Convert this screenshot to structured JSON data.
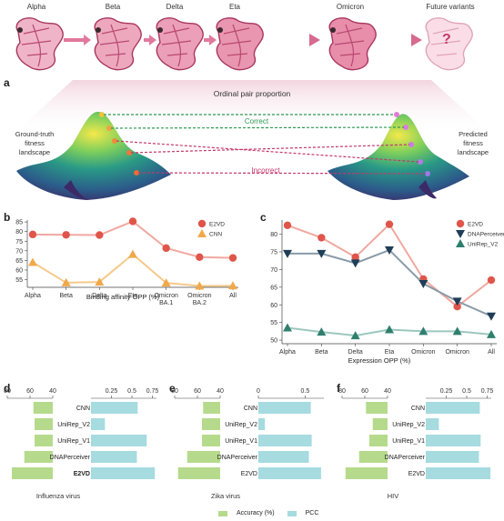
{
  "top_variants": [
    "Alpha",
    "Beta",
    "Delta",
    "Eta",
    "Omicron",
    "Future variants"
  ],
  "future_mark": "?",
  "panel_a": {
    "letter": "a",
    "ordinal_title": "Ordinal pair proportion",
    "left_label": [
      "Ground-truth",
      "fitness",
      "landscape"
    ],
    "right_label": [
      "Predicted",
      "fitness",
      "landscape"
    ],
    "correct": "Correct",
    "incorrect": "Incorrect",
    "colors": {
      "correct": "#2e9b55",
      "incorrect": "#c4386a"
    }
  },
  "panel_b": {
    "letter": "b",
    "xlabel": "Binding affinity OPP (%)",
    "legend": [
      "E2VD",
      "CNN"
    ]
  },
  "panel_c": {
    "letter": "c",
    "xlabel": "Expression OPP (%)",
    "legend": [
      "E2VD",
      "DNAPerceiver",
      "UniRep_V2"
    ]
  },
  "panel_d": {
    "letter": "d",
    "title": "Influenza virus"
  },
  "panel_e": {
    "letter": "e",
    "title": "Zika virus"
  },
  "panel_f": {
    "letter": "f",
    "title": "HIV"
  },
  "bottom_legend": {
    "accuracy": "Accuracy (%)",
    "pcc": "PCC"
  },
  "chart_data": [
    {
      "type": "line",
      "id": "b",
      "categories": [
        "Alpha",
        "Beta",
        "Delta",
        "Eta",
        "Omicron BA.1",
        "Omicron BA.2",
        "All"
      ],
      "xlabel": "Binding affinity OPP (%)",
      "ylim": [
        51,
        86
      ],
      "yticks": [
        55,
        60,
        65,
        70,
        75,
        80,
        85
      ],
      "legend_position": "top-right",
      "series": [
        {
          "name": "E2VD",
          "color": "#e0554a",
          "line": "#f0a8a0",
          "marker": "circle",
          "values": [
            78.5,
            78.3,
            78.2,
            85.3,
            71.4,
            66.7,
            66.3
          ]
        },
        {
          "name": "CNN",
          "color": "#f0a94a",
          "line": "#f5c98a",
          "marker": "triangle",
          "values": [
            64.0,
            53.4,
            53.8,
            68.2,
            53.3,
            51.7,
            51.8
          ]
        }
      ]
    },
    {
      "type": "line",
      "id": "c",
      "categories": [
        "Alpha",
        "Beta",
        "Delta",
        "Eta",
        "Omicron BA.1",
        "Omicron BA.2",
        "All"
      ],
      "xlabel": "Expression OPP (%)",
      "ylim": [
        49,
        84
      ],
      "yticks": [
        50,
        55,
        60,
        65,
        70,
        75,
        80
      ],
      "legend_position": "top-right",
      "series": [
        {
          "name": "E2VD",
          "color": "#e0554a",
          "line": "#f0a8a0",
          "marker": "circle",
          "values": [
            82.5,
            79.0,
            73.5,
            82.8,
            67.3,
            59.5,
            67.0
          ]
        },
        {
          "name": "DNAPerceiver",
          "color": "#1f3e57",
          "line": "#8a9aa8",
          "marker": "triangle-down",
          "values": [
            74.5,
            74.5,
            71.8,
            75.5,
            66.0,
            61.0,
            56.8
          ]
        },
        {
          "name": "UniRep_V2",
          "color": "#2f7f6f",
          "line": "#9cc7bd",
          "marker": "triangle",
          "values": [
            53.5,
            52.3,
            51.3,
            53.0,
            52.5,
            52.5,
            51.6
          ]
        }
      ]
    },
    {
      "type": "bar",
      "id": "d",
      "title": "Influenza virus",
      "categories": [
        "CNN",
        "UniRep_V2",
        "UniRep_V1",
        "DNAPerceiver",
        "E2VD"
      ],
      "accuracy_axis": [
        80,
        60,
        40
      ],
      "pcc_axis": [
        0.25,
        0.5,
        0.75
      ],
      "accuracy": [
        57,
        56,
        56,
        65,
        76
      ],
      "pcc": [
        0.57,
        0.17,
        0.68,
        0.56,
        0.78
      ]
    },
    {
      "type": "bar",
      "id": "e",
      "title": "Zika virus",
      "categories": [
        "CNN",
        "UniRep_V2",
        "UniRep_V1",
        "DNAPerceiver",
        "E2VD"
      ],
      "accuracy_axis": [
        80,
        60,
        40
      ],
      "pcc_axis": [
        0,
        0.5
      ],
      "accuracy": [
        55,
        56,
        56,
        69,
        77
      ],
      "pcc": [
        0.56,
        0.07,
        0.57,
        0.54,
        0.67
      ]
    },
    {
      "type": "bar",
      "id": "f",
      "title": "HIV",
      "categories": [
        "CNN",
        "UniRep_V2",
        "UniRep_V1",
        "DNAPerceiver",
        "E2VD"
      ],
      "accuracy_axis": [
        80,
        60,
        40
      ],
      "pcc_axis": [
        0.25,
        0.5,
        0.75
      ],
      "accuracy": [
        59,
        53,
        56,
        65,
        77
      ],
      "pcc": [
        0.66,
        0.16,
        0.67,
        0.65,
        0.79
      ]
    }
  ]
}
